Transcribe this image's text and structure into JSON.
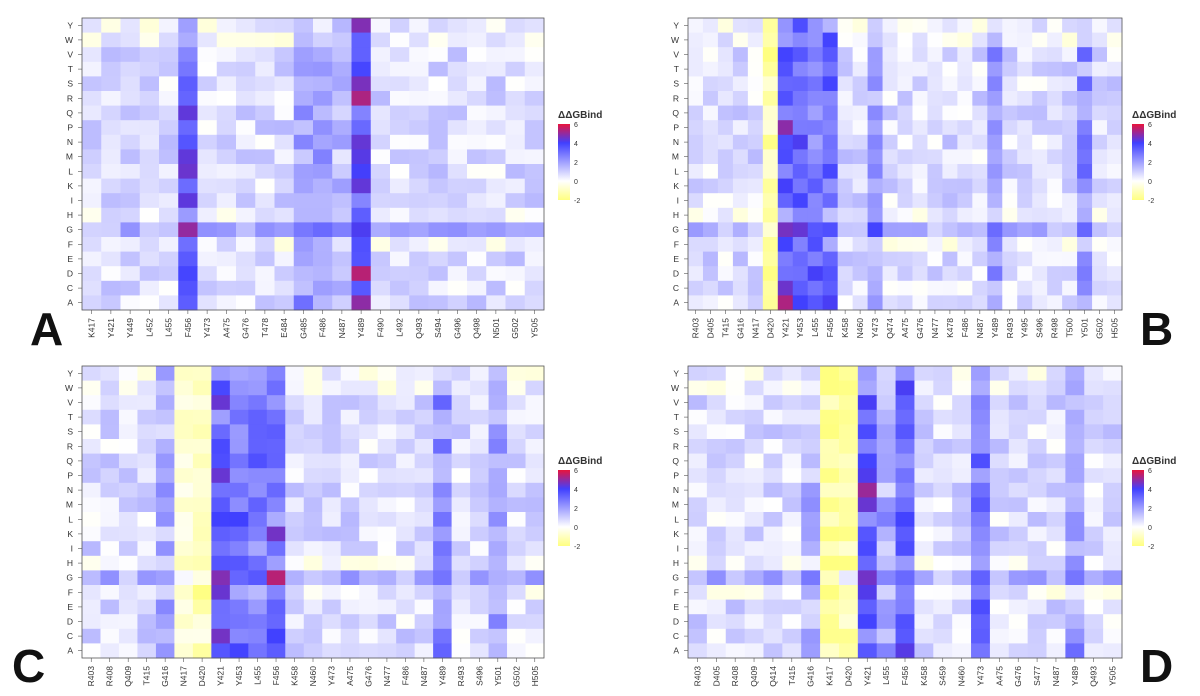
{
  "y_labels": [
    "Y",
    "W",
    "V",
    "T",
    "S",
    "R",
    "Q",
    "P",
    "N",
    "M",
    "L",
    "K",
    "I",
    "H",
    "G",
    "F",
    "E",
    "D",
    "C",
    "A"
  ],
  "legend": {
    "title": "ΔΔGBind",
    "ticks": [
      "6",
      "4",
      "2",
      "0",
      "-2"
    ]
  },
  "colors": {
    "neg": "#ffff80",
    "zero": "#ffffff",
    "mid": "#4040ff",
    "high": "#e8143c"
  },
  "chart_data": [
    {
      "type": "heatmap",
      "panel": "A",
      "x": [
        "K417",
        "Y421",
        "Y449",
        "L452",
        "L455",
        "F456",
        "Y473",
        "A475",
        "G476",
        "T478",
        "E484",
        "G485",
        "F486",
        "N487",
        "Y489",
        "F490",
        "L492",
        "Q493",
        "S494",
        "G496",
        "Q498",
        "N501",
        "G502",
        "Y505"
      ],
      "y": [
        "Y",
        "W",
        "V",
        "T",
        "S",
        "R",
        "Q",
        "P",
        "N",
        "M",
        "L",
        "K",
        "I",
        "H",
        "G",
        "F",
        "E",
        "D",
        "C",
        "A"
      ],
      "hot_columns": {
        "F456": 1.4,
        "Y489": 1.7,
        "G485": 0.6,
        "F486": 0.6,
        "N487": 0.4
      },
      "cold_cells": [
        [
          "F",
          "*"
        ],
        [
          "W",
          "A475"
        ]
      ],
      "value_range": [
        -2,
        6
      ]
    },
    {
      "type": "heatmap",
      "panel": "B",
      "x": [
        "R403",
        "D405",
        "T415",
        "G416",
        "N417",
        "D420",
        "Y421",
        "Y453",
        "L455",
        "F456",
        "K458",
        "N460",
        "Y473",
        "Q474",
        "A475",
        "G476",
        "N477",
        "K478",
        "F486",
        "N487",
        "Y489",
        "R493",
        "Y495",
        "S496",
        "R498",
        "T500",
        "Y501",
        "G502",
        "H505"
      ],
      "y": [
        "Y",
        "W",
        "V",
        "T",
        "S",
        "R",
        "Q",
        "P",
        "N",
        "M",
        "L",
        "K",
        "I",
        "H",
        "G",
        "F",
        "E",
        "D",
        "C",
        "A"
      ],
      "hot_columns": {
        "Y421": 1.5,
        "Y453": 1.2,
        "L455": 1.1,
        "F456": 1.3,
        "Y473": 0.7,
        "Y489": 0.7,
        "Y501": 0.8
      },
      "cold_columns": {
        "D420": 1.2
      },
      "value_range": [
        -2,
        6
      ]
    },
    {
      "type": "heatmap",
      "panel": "C",
      "x": [
        "R403",
        "R408",
        "Q409",
        "T415",
        "G416",
        "N417",
        "D420",
        "Y421",
        "Y453",
        "L455",
        "F456",
        "K458",
        "N460",
        "Y473",
        "A475",
        "G476",
        "N477",
        "F486",
        "N487",
        "Y489",
        "R493",
        "S496",
        "Y501",
        "G502",
        "H505"
      ],
      "y": [
        "Y",
        "W",
        "V",
        "T",
        "S",
        "R",
        "Q",
        "P",
        "N",
        "M",
        "L",
        "K",
        "I",
        "H",
        "G",
        "F",
        "E",
        "D",
        "C",
        "A"
      ],
      "hot_columns": {
        "Y421": 1.6,
        "Y453": 1.1,
        "L455": 1.0,
        "F456": 1.3,
        "Y489": 0.8,
        "Y501": 0.7,
        "G416": 0.5
      },
      "cold_columns": {
        "N417": 0.6,
        "D420": 0.9
      },
      "value_range": [
        -2,
        6
      ]
    },
    {
      "type": "heatmap",
      "panel": "D",
      "x": [
        "R403",
        "D405",
        "R408",
        "Q409",
        "Q414",
        "T415",
        "G416",
        "K417",
        "D420",
        "Y421",
        "L455",
        "F456",
        "K458",
        "S459",
        "N460",
        "Y473",
        "A475",
        "G476",
        "S477",
        "N487",
        "Y489",
        "Q493",
        "Y505"
      ],
      "y": [
        "Y",
        "W",
        "V",
        "T",
        "S",
        "R",
        "Q",
        "P",
        "N",
        "M",
        "L",
        "K",
        "I",
        "H",
        "G",
        "F",
        "E",
        "D",
        "C",
        "A"
      ],
      "hot_columns": {
        "Y421": 1.5,
        "F456": 1.3,
        "Y473": 1.0,
        "L455": 0.6,
        "Y489": 0.7,
        "G416": 0.4
      },
      "cold_columns": {
        "K417": 1.3,
        "D420": 1.1
      },
      "value_range": [
        -2,
        6
      ]
    }
  ],
  "panels": [
    {
      "letter": "A"
    },
    {
      "letter": "B"
    },
    {
      "letter": "C"
    },
    {
      "letter": "D"
    }
  ]
}
